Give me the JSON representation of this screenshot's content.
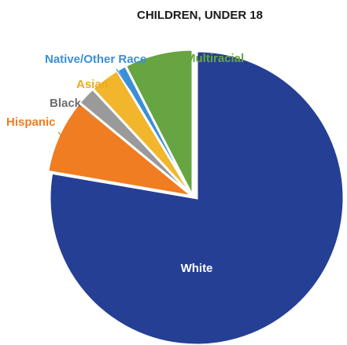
{
  "chart_data": {
    "type": "pie",
    "title": "CHILDREN, UNDER 18",
    "slices": [
      {
        "label": "White",
        "value": 75.0,
        "color": "#253f95",
        "label_color": "#ffffff"
      },
      {
        "label": "Hispanic",
        "value": 8.0,
        "color": "#f07d22",
        "label_color": "#f07d22"
      },
      {
        "label": "Black",
        "value": 2.0,
        "color": "#9a9a9a",
        "label_color": "#6d6d6d"
      },
      {
        "label": "Asian",
        "value": 3.2,
        "color": "#f2b62c",
        "label_color": "#e9ac1f"
      },
      {
        "label": "Native/Other Race",
        "value": 1.0,
        "color": "#3b8fd9",
        "label_color": "#3b8fd9"
      },
      {
        "label": "Multiracial",
        "value": 7.3,
        "color": "#66a541",
        "label_color": "#66a541"
      }
    ],
    "exploded": "White",
    "legend": "none"
  }
}
